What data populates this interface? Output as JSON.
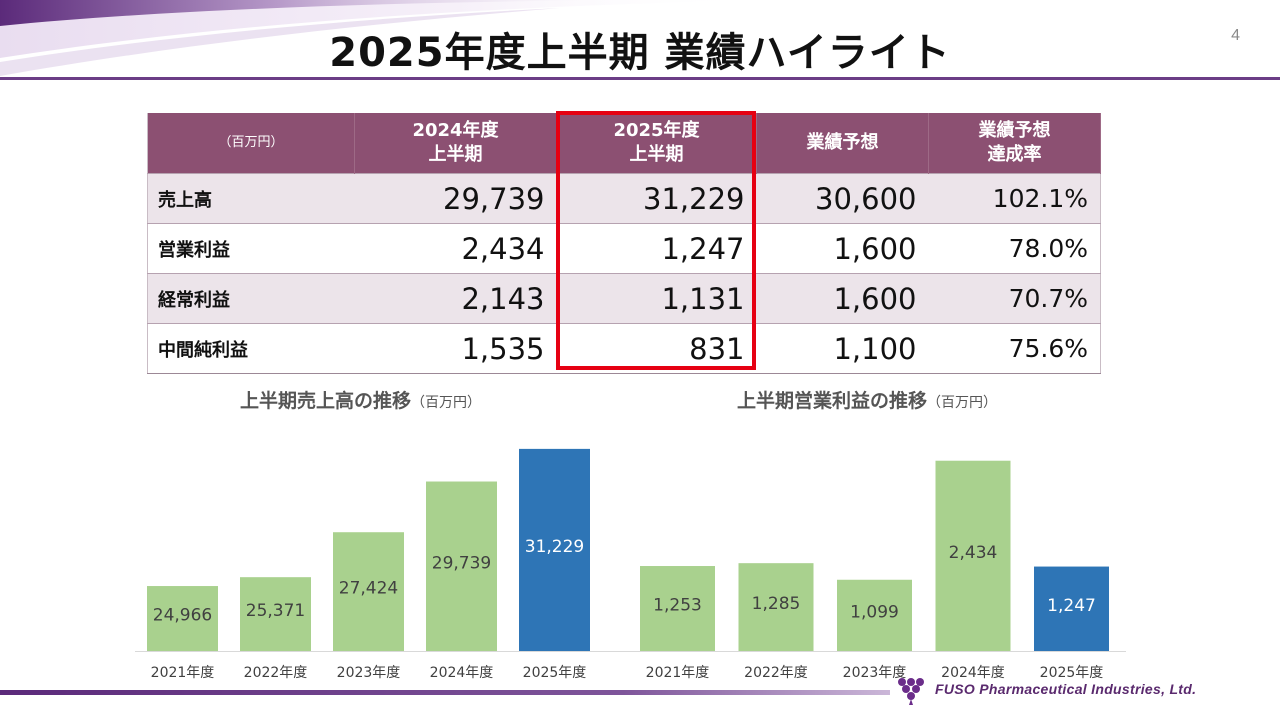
{
  "page": {
    "title": "2025年度上半期 業績ハイライト",
    "page_number": "4"
  },
  "table": {
    "unit_label": "（百万円）",
    "headers": [
      {
        "line1": "2024年度",
        "line2": "上半期"
      },
      {
        "line1": "2025年度",
        "line2": "上半期"
      },
      {
        "line1": "業績予想",
        "line2": ""
      },
      {
        "line1": "業績予想",
        "line2": "達成率"
      }
    ],
    "rows": [
      {
        "label": "売上高",
        "v2024": "29,739",
        "v2025": "31,229",
        "forecast": "30,600",
        "rate": "102.1%"
      },
      {
        "label": "営業利益",
        "v2024": "2,434",
        "v2025": "1,247",
        "forecast": "1,600",
        "rate": "78.0%"
      },
      {
        "label": "経常利益",
        "v2024": "2,143",
        "v2025": "1,131",
        "forecast": "1,600",
        "rate": "70.7%"
      },
      {
        "label": "中間純利益",
        "v2024": "1,535",
        "v2025": "831",
        "forecast": "1,100",
        "rate": "75.6%"
      }
    ]
  },
  "colors": {
    "header_bg": "#8c5072",
    "highlight_border": "#e60012",
    "bar_past": "#a9d18e",
    "bar_current": "#2e75b6",
    "accent_purple": "#6b3d86"
  },
  "chart_data": [
    {
      "type": "bar",
      "title": "上半期売上高の推移",
      "unit": "（百万円）",
      "categories": [
        "2021年度",
        "2022年度",
        "2023年度",
        "2024年度",
        "2025年度"
      ],
      "values": [
        24966,
        25371,
        27424,
        29739,
        31229
      ],
      "value_labels": [
        "24,966",
        "25,371",
        "27,424",
        "29,739",
        "31,229"
      ],
      "highlight_index": 4,
      "ylim": [
        22000,
        32000
      ]
    },
    {
      "type": "bar",
      "title": "上半期営業利益の推移",
      "unit": "（百万円）",
      "categories": [
        "2021年度",
        "2022年度",
        "2023年度",
        "2024年度",
        "2025年度"
      ],
      "values": [
        1253,
        1285,
        1099,
        2434,
        1247
      ],
      "value_labels": [
        "1,253",
        "1,285",
        "1,099",
        "2,434",
        "1,247"
      ],
      "highlight_index": 4,
      "ylim": [
        300,
        2700
      ]
    }
  ],
  "footer": {
    "company": "FUSO Pharmaceutical Industries, Ltd.",
    "logo_icon": "grape-logo-icon"
  }
}
